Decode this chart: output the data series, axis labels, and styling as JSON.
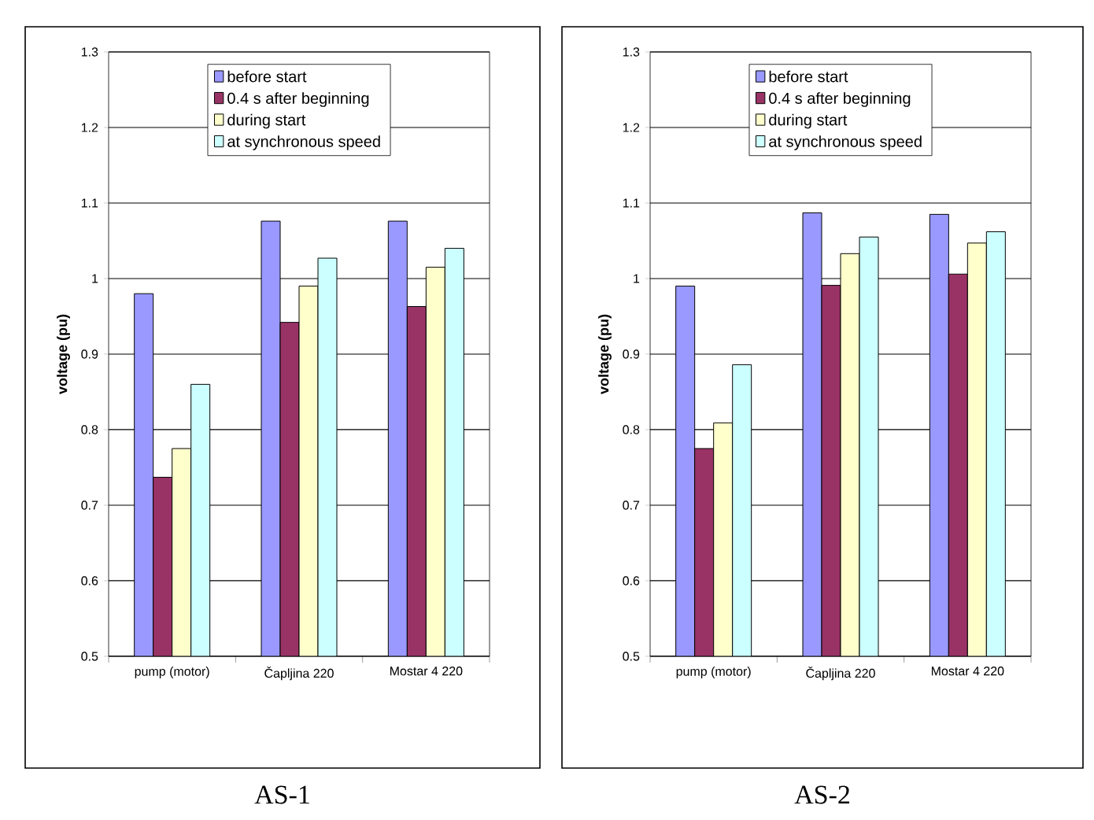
{
  "chart_data": [
    {
      "type": "bar",
      "ylabel": "voltage (pu)",
      "categories": [
        "pump (motor)",
        "Čapljina 220",
        "Mostar 4 220"
      ],
      "series": [
        {
          "name": "before start",
          "color": "#9999ff",
          "values": [
            0.98,
            1.076,
            1.076
          ]
        },
        {
          "name": "0.4 s after beginning",
          "color": "#993366",
          "values": [
            0.737,
            0.942,
            0.963
          ]
        },
        {
          "name": "during start",
          "color": "#ffffcc",
          "values": [
            0.775,
            0.99,
            1.015
          ]
        },
        {
          "name": "at synchronous speed",
          "color": "#ccffff",
          "values": [
            0.86,
            1.027,
            1.04
          ]
        }
      ],
      "ylim": [
        0.5,
        1.3
      ],
      "yticks": [
        0.5,
        0.6,
        0.7,
        0.8,
        0.9,
        1,
        1.1,
        1.2,
        1.3
      ],
      "grid": "y",
      "legend": "top",
      "annotations": [
        "AS-1"
      ]
    },
    {
      "type": "bar",
      "ylabel": "voltage (pu)",
      "categories": [
        "pump (motor)",
        "Čapljina 220",
        "Mostar 4 220"
      ],
      "series": [
        {
          "name": "before start",
          "color": "#9999ff",
          "values": [
            0.99,
            1.087,
            1.085
          ]
        },
        {
          "name": "0.4 s after beginning",
          "color": "#993366",
          "values": [
            0.775,
            0.991,
            1.006
          ]
        },
        {
          "name": "during start",
          "color": "#ffffcc",
          "values": [
            0.809,
            1.033,
            1.047
          ]
        },
        {
          "name": "at synchronous speed",
          "color": "#ccffff",
          "values": [
            0.886,
            1.055,
            1.062
          ]
        }
      ],
      "ylim": [
        0.5,
        1.3
      ],
      "yticks": [
        0.5,
        0.6,
        0.7,
        0.8,
        0.9,
        1,
        1.1,
        1.2,
        1.3
      ],
      "grid": "y",
      "legend": "top",
      "annotations": [
        "AS-2"
      ]
    }
  ]
}
